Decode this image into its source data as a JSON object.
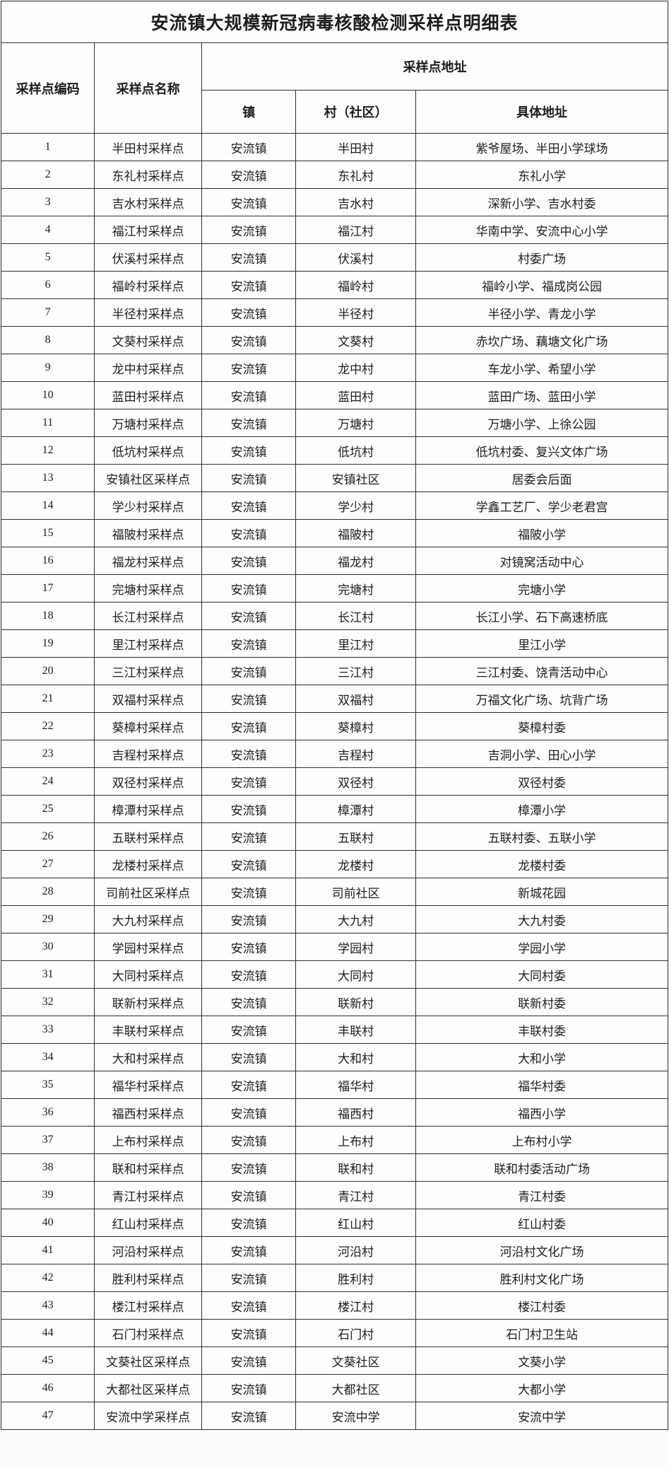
{
  "page": {
    "background": "#fbfbf8",
    "border_color": "#2f2f2f",
    "text_color": "#1d1d1d"
  },
  "table": {
    "title": "安流镇大规模新冠病毒核酸检测采样点明细表",
    "headers": {
      "id": "采样点编码",
      "name": "采样点名称",
      "address_group": "采样点地址",
      "town": "镇",
      "village": "村（社区）",
      "detail": "具体地址"
    },
    "rows": [
      {
        "id": "1",
        "name": "半田村采样点",
        "town": "安流镇",
        "village": "半田村",
        "detail": "紫爷屋场、半田小学球场"
      },
      {
        "id": "2",
        "name": "东礼村采样点",
        "town": "安流镇",
        "village": "东礼村",
        "detail": "东礼小学"
      },
      {
        "id": "3",
        "name": "吉水村采样点",
        "town": "安流镇",
        "village": "吉水村",
        "detail": "深新小学、吉水村委"
      },
      {
        "id": "4",
        "name": "福江村采样点",
        "town": "安流镇",
        "village": "福江村",
        "detail": "华南中学、安流中心小学"
      },
      {
        "id": "5",
        "name": "伏溪村采样点",
        "town": "安流镇",
        "village": "伏溪村",
        "detail": "村委广场"
      },
      {
        "id": "6",
        "name": "福岭村采样点",
        "town": "安流镇",
        "village": "福岭村",
        "detail": "福岭小学、福成岗公园"
      },
      {
        "id": "7",
        "name": "半径村采样点",
        "town": "安流镇",
        "village": "半径村",
        "detail": "半径小学、青龙小学"
      },
      {
        "id": "8",
        "name": "文葵村采样点",
        "town": "安流镇",
        "village": "文葵村",
        "detail": "赤坎广场、藕塘文化广场"
      },
      {
        "id": "9",
        "name": "龙中村采样点",
        "town": "安流镇",
        "village": "龙中村",
        "detail": "车龙小学、希望小学"
      },
      {
        "id": "10",
        "name": "蓝田村采样点",
        "town": "安流镇",
        "village": "蓝田村",
        "detail": "蓝田广场、蓝田小学"
      },
      {
        "id": "11",
        "name": "万塘村采样点",
        "town": "安流镇",
        "village": "万塘村",
        "detail": "万塘小学、上徐公园"
      },
      {
        "id": "12",
        "name": "低坑村采样点",
        "town": "安流镇",
        "village": "低坑村",
        "detail": "低坑村委、复兴文体广场"
      },
      {
        "id": "13",
        "name": "安镇社区采样点",
        "town": "安流镇",
        "village": "安镇社区",
        "detail": "居委会后面"
      },
      {
        "id": "14",
        "name": "学少村采样点",
        "town": "安流镇",
        "village": "学少村",
        "detail": "学鑫工艺厂、学少老君宫"
      },
      {
        "id": "15",
        "name": "福陂村采样点",
        "town": "安流镇",
        "village": "福陂村",
        "detail": "福陂小学"
      },
      {
        "id": "16",
        "name": "福龙村采样点",
        "town": "安流镇",
        "village": "福龙村",
        "detail": "对镜窝活动中心"
      },
      {
        "id": "17",
        "name": "完塘村采样点",
        "town": "安流镇",
        "village": "完塘村",
        "detail": "完塘小学"
      },
      {
        "id": "18",
        "name": "长江村采样点",
        "town": "安流镇",
        "village": "长江村",
        "detail": "长江小学、石下高速桥底"
      },
      {
        "id": "19",
        "name": "里江村采样点",
        "town": "安流镇",
        "village": "里江村",
        "detail": "里江小学"
      },
      {
        "id": "20",
        "name": "三江村采样点",
        "town": "安流镇",
        "village": "三江村",
        "detail": "三江村委、饶青活动中心"
      },
      {
        "id": "21",
        "name": "双福村采样点",
        "town": "安流镇",
        "village": "双福村",
        "detail": "万福文化广场、坑背广场"
      },
      {
        "id": "22",
        "name": "葵樟村采样点",
        "town": "安流镇",
        "village": "葵樟村",
        "detail": "葵樟村委"
      },
      {
        "id": "23",
        "name": "吉程村采样点",
        "town": "安流镇",
        "village": "吉程村",
        "detail": "吉洞小学、田心小学"
      },
      {
        "id": "24",
        "name": "双径村采样点",
        "town": "安流镇",
        "village": "双径村",
        "detail": "双径村委"
      },
      {
        "id": "25",
        "name": "樟潭村采样点",
        "town": "安流镇",
        "village": "樟潭村",
        "detail": "樟潭小学"
      },
      {
        "id": "26",
        "name": "五联村采样点",
        "town": "安流镇",
        "village": "五联村",
        "detail": "五联村委、五联小学"
      },
      {
        "id": "27",
        "name": "龙楼村采样点",
        "town": "安流镇",
        "village": "龙楼村",
        "detail": "龙楼村委"
      },
      {
        "id": "28",
        "name": "司前社区采样点",
        "town": "安流镇",
        "village": "司前社区",
        "detail": "新城花园"
      },
      {
        "id": "29",
        "name": "大九村采样点",
        "town": "安流镇",
        "village": "大九村",
        "detail": "大九村委"
      },
      {
        "id": "30",
        "name": "学园村采样点",
        "town": "安流镇",
        "village": "学园村",
        "detail": "学园小学"
      },
      {
        "id": "31",
        "name": "大同村采样点",
        "town": "安流镇",
        "village": "大同村",
        "detail": "大同村委"
      },
      {
        "id": "32",
        "name": "联新村采样点",
        "town": "安流镇",
        "village": "联新村",
        "detail": "联新村委"
      },
      {
        "id": "33",
        "name": "丰联村采样点",
        "town": "安流镇",
        "village": "丰联村",
        "detail": "丰联村委"
      },
      {
        "id": "34",
        "name": "大和村采样点",
        "town": "安流镇",
        "village": "大和村",
        "detail": "大和小学"
      },
      {
        "id": "35",
        "name": "福华村采样点",
        "town": "安流镇",
        "village": "福华村",
        "detail": "福华村委"
      },
      {
        "id": "36",
        "name": "福西村采样点",
        "town": "安流镇",
        "village": "福西村",
        "detail": "福西小学"
      },
      {
        "id": "37",
        "name": "上布村采样点",
        "town": "安流镇",
        "village": "上布村",
        "detail": "上布村小学"
      },
      {
        "id": "38",
        "name": "联和村采样点",
        "town": "安流镇",
        "village": "联和村",
        "detail": "联和村委活动广场"
      },
      {
        "id": "39",
        "name": "青江村采样点",
        "town": "安流镇",
        "village": "青江村",
        "detail": "青江村委"
      },
      {
        "id": "40",
        "name": "红山村采样点",
        "town": "安流镇",
        "village": "红山村",
        "detail": "红山村委"
      },
      {
        "id": "41",
        "name": "河沿村采样点",
        "town": "安流镇",
        "village": "河沿村",
        "detail": "河沿村文化广场"
      },
      {
        "id": "42",
        "name": "胜利村采样点",
        "town": "安流镇",
        "village": "胜利村",
        "detail": "胜利村文化广场"
      },
      {
        "id": "43",
        "name": "楼江村采样点",
        "town": "安流镇",
        "village": "楼江村",
        "detail": "楼江村委"
      },
      {
        "id": "44",
        "name": "石门村采样点",
        "town": "安流镇",
        "village": "石门村",
        "detail": "石门村卫生站"
      },
      {
        "id": "45",
        "name": "文葵社区采样点",
        "town": "安流镇",
        "village": "文葵社区",
        "detail": "文葵小学"
      },
      {
        "id": "46",
        "name": "大都社区采样点",
        "town": "安流镇",
        "village": "大都社区",
        "detail": "大都小学"
      },
      {
        "id": "47",
        "name": "安流中学采样点",
        "town": "安流镇",
        "village": "安流中学",
        "detail": "安流中学"
      }
    ]
  }
}
